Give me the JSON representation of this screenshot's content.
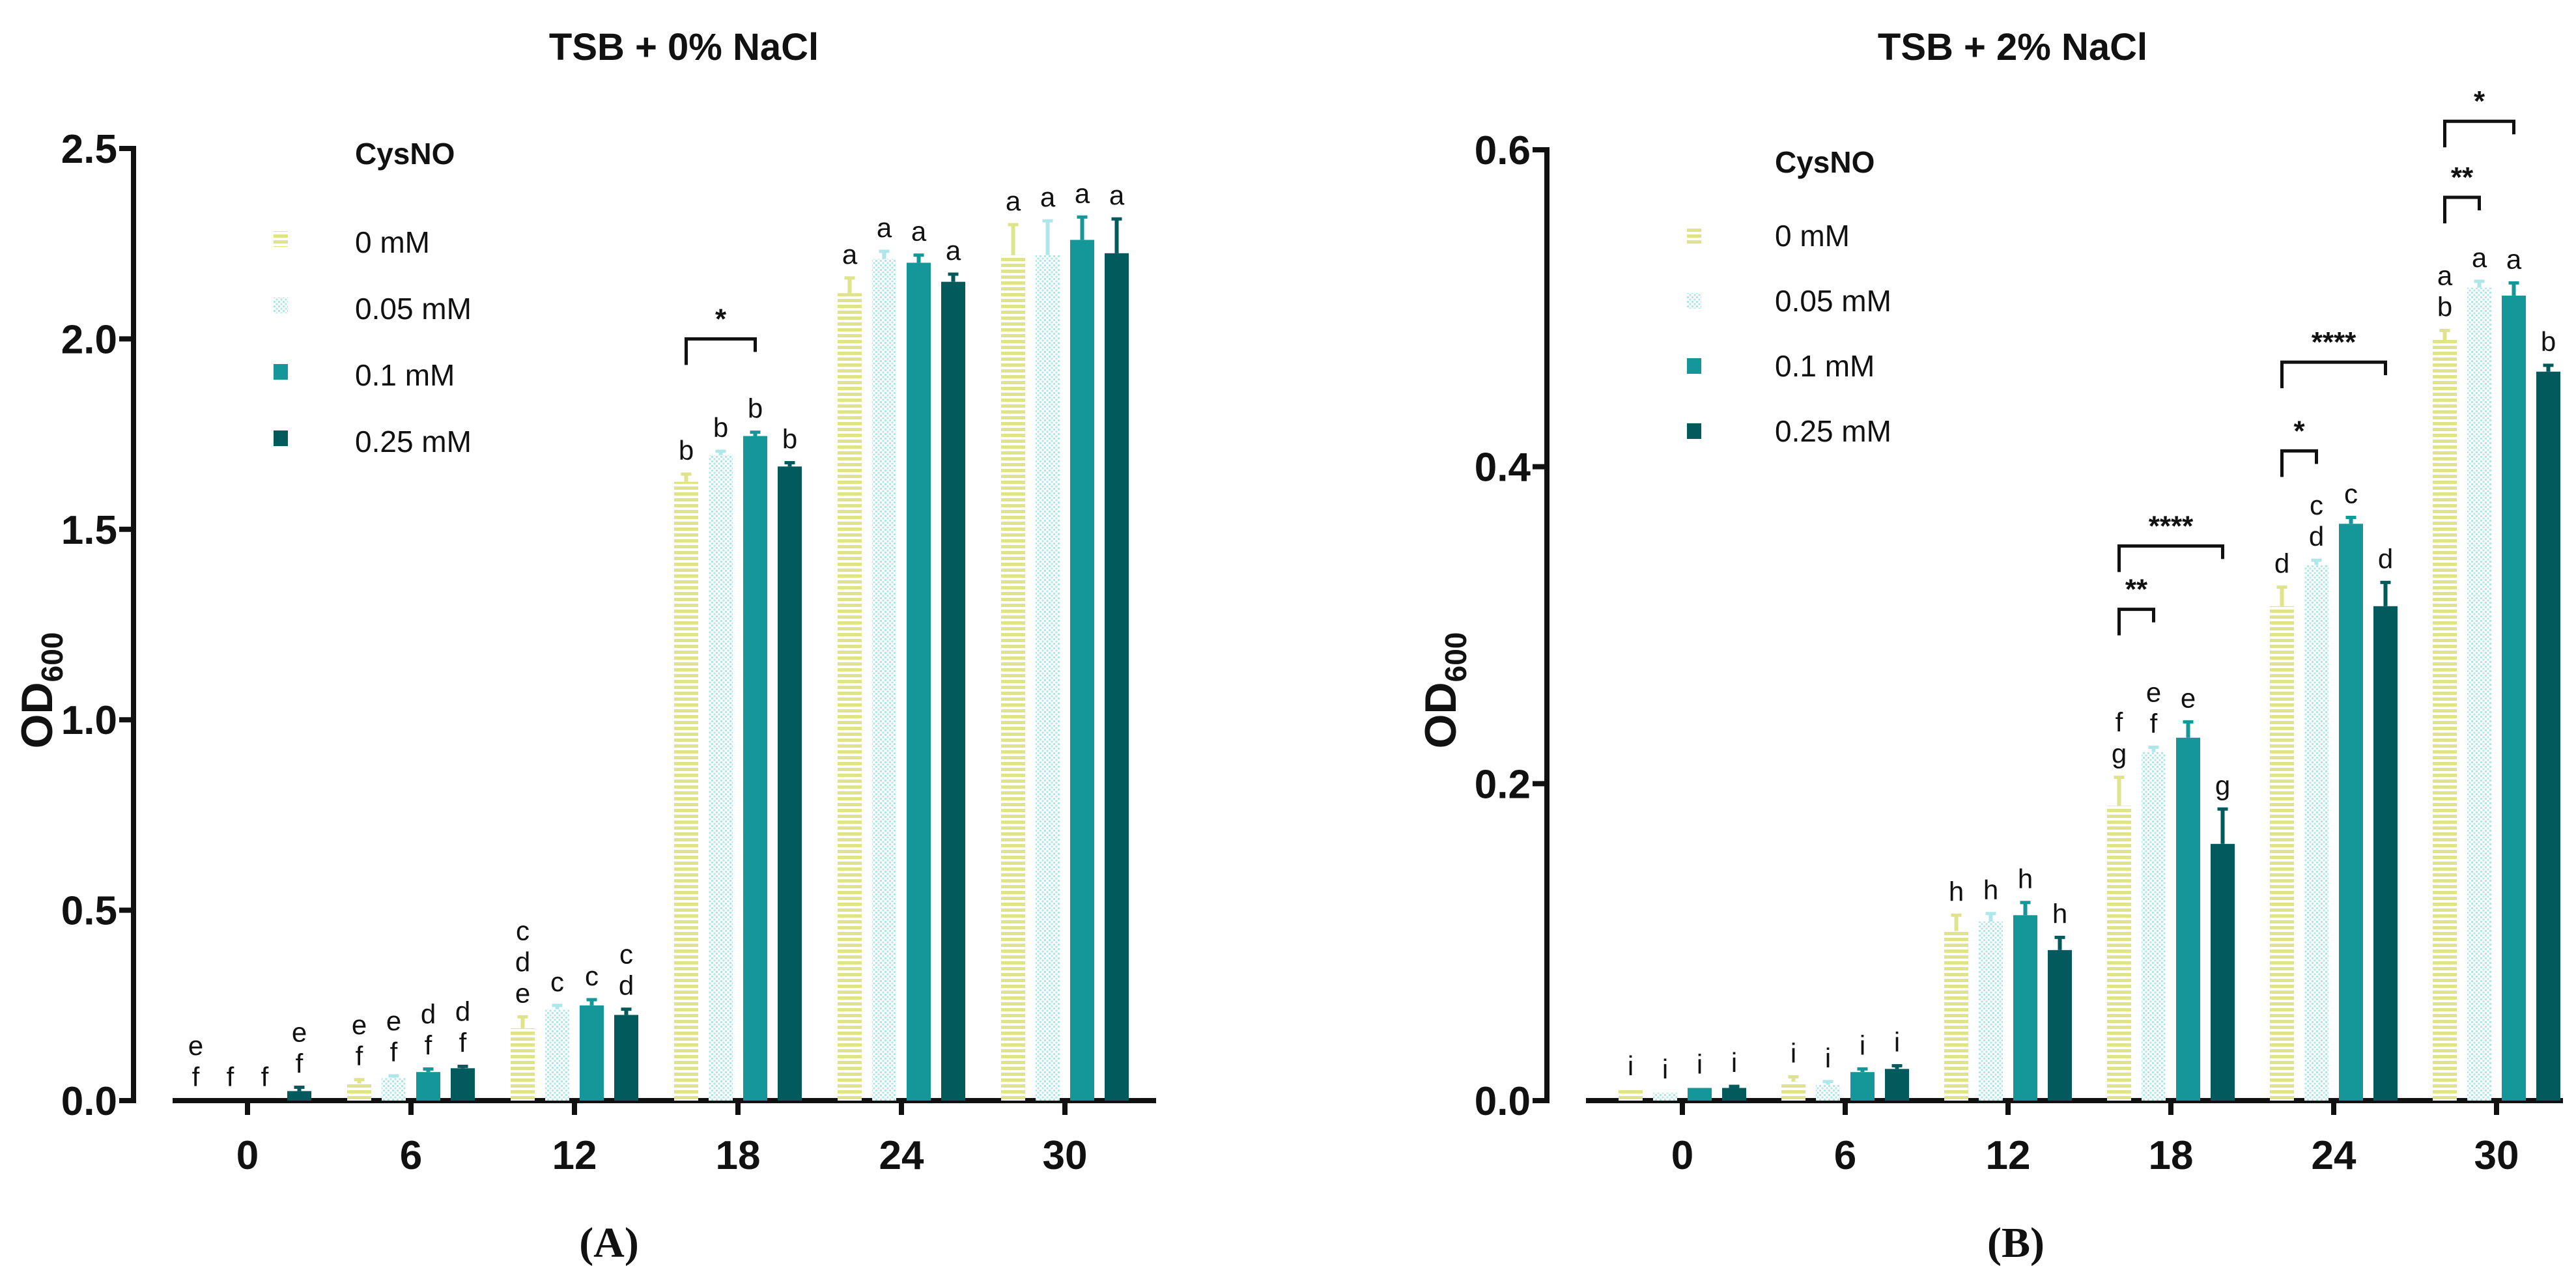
{
  "colors": {
    "c0": "#dfe48a",
    "c005": "#aee6ea",
    "c01": "#15979a",
    "c025": "#035a5c",
    "axis": "#111111"
  },
  "chart_data": [
    {
      "type": "bar",
      "panel": "(A)",
      "title": "TSB + 0% NaCl",
      "ylabel": "OD",
      "ylabel_sub": "600",
      "ylim": [
        0,
        2.5
      ],
      "yticks": [
        "0.0",
        "0.5",
        "1.0",
        "1.5",
        "2.0",
        "2.5"
      ],
      "categories": [
        "0",
        "6",
        "12",
        "18",
        "24",
        "30"
      ],
      "legend_title": "CysNO",
      "series": [
        {
          "name": "0 mM",
          "values": [
            0.0,
            0.045,
            0.19,
            1.625,
            2.12,
            2.22
          ],
          "errors": [
            0.0,
            0.01,
            0.03,
            0.02,
            0.04,
            0.08
          ],
          "letters": [
            "e\nf",
            "e\nf",
            "c\nd\ne",
            "b",
            "a",
            "a"
          ]
        },
        {
          "name": "0.05 mM",
          "values": [
            0.0,
            0.06,
            0.24,
            1.695,
            2.21,
            2.22
          ],
          "errors": [
            0.0,
            0.005,
            0.01,
            0.01,
            0.02,
            0.09
          ],
          "letters": [
            "f",
            "e\nf",
            "c",
            "b",
            "a",
            "a"
          ]
        },
        {
          "name": "0.1 mM",
          "values": [
            0.0,
            0.075,
            0.25,
            1.745,
            2.2,
            2.26
          ],
          "errors": [
            0.0,
            0.008,
            0.015,
            0.01,
            0.02,
            0.06
          ],
          "letters": [
            "f",
            "d\nf",
            "c",
            "b",
            "a",
            "a"
          ]
        },
        {
          "name": "0.25 mM",
          "values": [
            0.025,
            0.085,
            0.225,
            1.665,
            2.15,
            2.225
          ],
          "errors": [
            0.01,
            0.005,
            0.015,
            0.01,
            0.02,
            0.09
          ],
          "letters": [
            "e\nf",
            "d\nf",
            "c\nd",
            "b",
            "a",
            "a"
          ]
        }
      ],
      "significance": [
        {
          "group": 3,
          "from": 0,
          "to": 2,
          "label": "*",
          "y": 2.0
        }
      ]
    },
    {
      "type": "bar",
      "panel": "(B)",
      "title": "TSB + 2% NaCl",
      "ylabel": "OD",
      "ylabel_sub": "600",
      "ylim": [
        0,
        0.6
      ],
      "yticks": [
        "0.0",
        "0.2",
        "0.4",
        "0.6"
      ],
      "categories": [
        "0",
        "6",
        "12",
        "18",
        "24",
        "30"
      ],
      "legend_title": "CysNO",
      "series": [
        {
          "name": "0 mM",
          "values": [
            0.007,
            0.012,
            0.107,
            0.186,
            0.312,
            0.48
          ],
          "errors": [
            0.0,
            0.003,
            0.01,
            0.018,
            0.012,
            0.006
          ],
          "letters": [
            "i",
            "i",
            "h",
            "f\ng",
            "d",
            "a\nb"
          ]
        },
        {
          "name": "0.05 mM",
          "values": [
            0.005,
            0.01,
            0.113,
            0.22,
            0.338,
            0.513
          ],
          "errors": [
            0.0,
            0.002,
            0.005,
            0.003,
            0.003,
            0.004
          ],
          "letters": [
            "i",
            "i",
            "h",
            "e\nf",
            "c\nd",
            "a"
          ]
        },
        {
          "name": "0.1 mM",
          "values": [
            0.008,
            0.018,
            0.117,
            0.229,
            0.364,
            0.508
          ],
          "errors": [
            0.0,
            0.002,
            0.008,
            0.01,
            0.004,
            0.008
          ],
          "letters": [
            "i",
            "i",
            "h",
            "e",
            "c",
            "a"
          ]
        },
        {
          "name": "0.25 mM",
          "values": [
            0.008,
            0.02,
            0.095,
            0.162,
            0.312,
            0.46
          ],
          "errors": [
            0.001,
            0.002,
            0.008,
            0.022,
            0.015,
            0.004
          ],
          "letters": [
            "i",
            "i",
            "h",
            "g",
            "d",
            "b"
          ]
        }
      ],
      "significance": [
        {
          "group": 3,
          "from": 0,
          "to": 1,
          "label": "**",
          "y": 0.31
        },
        {
          "group": 3,
          "from": 0,
          "to": 3,
          "label": "****",
          "y": 0.35
        },
        {
          "group": 4,
          "from": 0,
          "to": 1,
          "label": "*",
          "y": 0.41
        },
        {
          "group": 4,
          "from": 0,
          "to": 3,
          "label": "****",
          "y": 0.466
        },
        {
          "group": 5,
          "from": 0,
          "to": 1,
          "label": "**",
          "y": 0.57
        },
        {
          "group": 5,
          "from": 0,
          "to": 2,
          "label": "*",
          "y": 0.618
        }
      ]
    }
  ]
}
